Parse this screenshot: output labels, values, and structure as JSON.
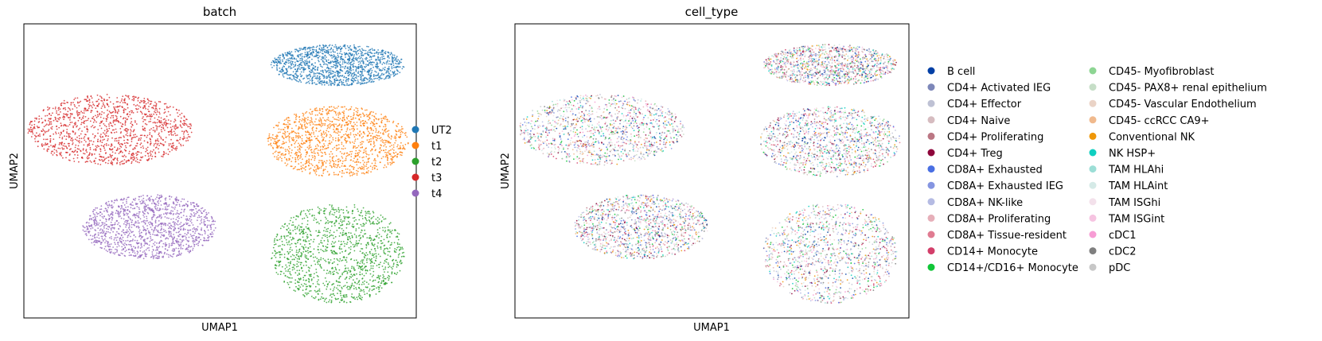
{
  "chart_data": [
    {
      "type": "scatter",
      "title": "batch",
      "xlabel": "UMAP1",
      "ylabel": "UMAP2",
      "xlim": [
        0,
        100
      ],
      "ylim": [
        0,
        100
      ],
      "grid": false,
      "legend": "right",
      "series": [
        {
          "name": "UT2",
          "color": "#1f77b4",
          "cluster": {
            "cx": 80,
            "cy": 86,
            "rx": 17,
            "ry": 7
          }
        },
        {
          "name": "t1",
          "color": "#ff7f0e",
          "cluster": {
            "cx": 80,
            "cy": 60,
            "rx": 18,
            "ry": 12
          }
        },
        {
          "name": "t2",
          "color": "#2ca02c",
          "cluster": {
            "cx": 80,
            "cy": 22,
            "rx": 17,
            "ry": 17
          }
        },
        {
          "name": "t3",
          "color": "#d62728",
          "cluster": {
            "cx": 22,
            "cy": 64,
            "rx": 21,
            "ry": 12
          }
        },
        {
          "name": "t4",
          "color": "#9467bd",
          "cluster": {
            "cx": 32,
            "cy": 31,
            "rx": 17,
            "ry": 11
          }
        }
      ]
    },
    {
      "type": "scatter",
      "title": "cell_type",
      "xlabel": "UMAP1",
      "ylabel": "UMAP2",
      "xlim": [
        0,
        100
      ],
      "ylim": [
        0,
        100
      ],
      "grid": false,
      "legend": "right",
      "clusters": [
        {
          "cx": 80,
          "cy": 86,
          "rx": 17,
          "ry": 7
        },
        {
          "cx": 80,
          "cy": 60,
          "rx": 18,
          "ry": 12
        },
        {
          "cx": 80,
          "cy": 22,
          "rx": 17,
          "ry": 17
        },
        {
          "cx": 22,
          "cy": 64,
          "rx": 21,
          "ry": 12
        },
        {
          "cx": 32,
          "cy": 31,
          "rx": 17,
          "ry": 11
        }
      ],
      "series": [
        {
          "name": "B cell",
          "color": "#023fa5"
        },
        {
          "name": "CD4+ Activated IEG",
          "color": "#7d87b9"
        },
        {
          "name": "CD4+ Effector",
          "color": "#bec1d4"
        },
        {
          "name": "CD4+ Naive",
          "color": "#d6bcc0"
        },
        {
          "name": "CD4+ Proliferating",
          "color": "#bb7784"
        },
        {
          "name": "CD4+ Treg",
          "color": "#8e063b"
        },
        {
          "name": "CD8A+ Exhausted",
          "color": "#4a6fe3"
        },
        {
          "name": "CD8A+ Exhausted IEG",
          "color": "#8595e1"
        },
        {
          "name": "CD8A+ NK-like",
          "color": "#b5bbe3"
        },
        {
          "name": "CD8A+ Proliferating",
          "color": "#e6afb9"
        },
        {
          "name": "CD8A+ Tissue-resident",
          "color": "#e07b91"
        },
        {
          "name": "CD14+ Monocyte",
          "color": "#d33f6a"
        },
        {
          "name": "CD14+/CD16+ Monocyte",
          "color": "#11c638"
        },
        {
          "name": "CD45- Myofibroblast",
          "color": "#8dd593"
        },
        {
          "name": "CD45- PAX8+ renal epithelium",
          "color": "#c6dec7"
        },
        {
          "name": "CD45- Vascular Endothelium",
          "color": "#ead3c6"
        },
        {
          "name": "CD45- ccRCC CA9+",
          "color": "#f0b98d"
        },
        {
          "name": "Conventional NK",
          "color": "#ef9708"
        },
        {
          "name": "NK HSP+",
          "color": "#0fcfc0"
        },
        {
          "name": "TAM HLAhi",
          "color": "#9cded6"
        },
        {
          "name": "TAM HLAint",
          "color": "#d5eae7"
        },
        {
          "name": "TAM ISGhi",
          "color": "#f3e1eb"
        },
        {
          "name": "TAM ISGint",
          "color": "#f6c4e1"
        },
        {
          "name": "cDC1",
          "color": "#f79cd4"
        },
        {
          "name": "cDC2",
          "color": "#7f7f7f"
        },
        {
          "name": "pDC",
          "color": "#c7c7c7"
        }
      ]
    }
  ]
}
